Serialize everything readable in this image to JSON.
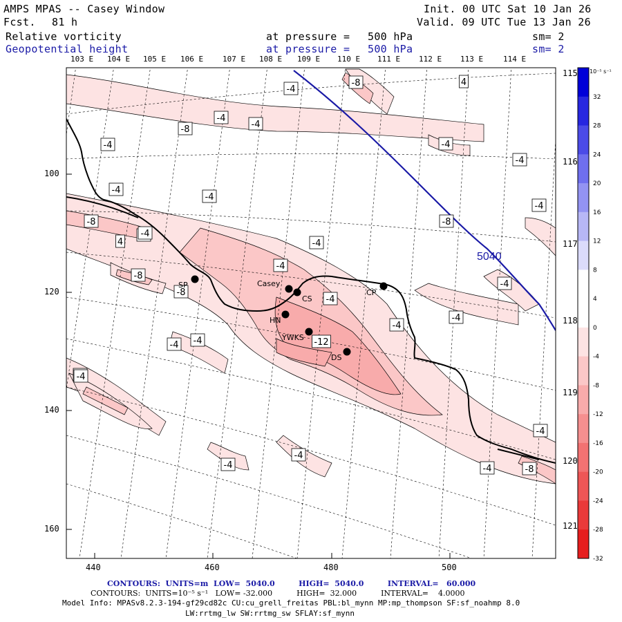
{
  "header": {
    "title": "AMPS MPAS -- Casey Window",
    "forecast_label": "Fcst.",
    "forecast_hours": "81 h",
    "init_label": "Init. 00 UTC Sat 10 Jan 26",
    "valid_label": "Valid. 09 UTC Tue 13 Jan 26",
    "field1": {
      "name": "Relative vorticity",
      "pressure_text": "at pressure =",
      "pressure": "500 hPa",
      "sm": "sm= 2"
    },
    "field2": {
      "name": "Geopotential height",
      "pressure_text": "at pressure =",
      "pressure": "500 hPa",
      "sm": "sm= 2"
    }
  },
  "top_longitudes": [
    "103 E",
    "104 E",
    "105 E",
    "106 E",
    "107 E",
    "108 E",
    "109 E",
    "110 E",
    "111 E",
    "112 E",
    "113 E",
    "114 E"
  ],
  "right_longitudes": [
    "115 E",
    "116 E",
    "117 E",
    "118 E",
    "119 E",
    "120 E",
    "121 E"
  ],
  "x_ticks": [
    "440",
    "460",
    "480",
    "500"
  ],
  "y_ticks": [
    "100",
    "120",
    "140",
    "160"
  ],
  "stations": [
    {
      "id": "Casey",
      "name": "Casey"
    },
    {
      "id": "CS",
      "name": "CS"
    },
    {
      "id": "CP",
      "name": "CP"
    },
    {
      "id": "SP",
      "name": "SP"
    },
    {
      "id": "HN",
      "name": "HN"
    },
    {
      "id": "YWKS",
      "name": "YWKS"
    },
    {
      "id": "DS",
      "name": "DS"
    }
  ],
  "contour_labels": [
    "-4",
    "-8",
    "-4",
    "-8",
    "-4",
    "-4",
    "-4",
    "-4",
    "-4",
    "-4",
    "-8",
    "-4",
    "-4",
    "-8",
    "-4",
    "-8",
    "-8",
    "-4",
    "-4",
    "-4",
    "-4",
    "-12",
    "-4",
    "-4",
    "-4",
    "-4",
    "-4",
    "-4",
    "-8",
    "-4",
    "4",
    "4",
    "-4",
    "-4",
    "-4"
  ],
  "height_label": "5040",
  "colorbar": {
    "unit": "10⁻⁵ s⁻¹",
    "labels": [
      "32",
      "28",
      "24",
      "20",
      "16",
      "12",
      "8",
      "4",
      "0",
      "-4",
      "-8",
      "-12",
      "-16",
      "-20",
      "-24",
      "-28",
      "-32"
    ],
    "colors": [
      "#0000d8",
      "#2727e0",
      "#4b4be7",
      "#6f6fee",
      "#9393f2",
      "#b7b7f6",
      "#dbdbfb",
      "#ffffff",
      "#ffffff",
      "#fde3e3",
      "#fbc7c7",
      "#f8abab",
      "#f58f8f",
      "#f27272",
      "#ee5656",
      "#ea3a3a",
      "#e61e1e"
    ]
  },
  "footer": {
    "line1": "CONTOURS:  UNITS=m  LOW=  5040.0         HIGH=  5040.0         INTERVAL=   60.000",
    "line2": "CONTOURS:  UNITS=10⁻⁵ s⁻¹   LOW= -32.000          HIGH=  32.000          INTERVAL=    4.0000",
    "line3": "Model Info: MPASv8.2.3-194-gf29cd82c CU:cu_grell_freitas PBL:bl_mynn MP:mp_thompson SF:sf_noahmp 8.0",
    "line4": "LW:rrtmg_lw SW:rrtmg_sw SFLAY:sf_mynn"
  }
}
